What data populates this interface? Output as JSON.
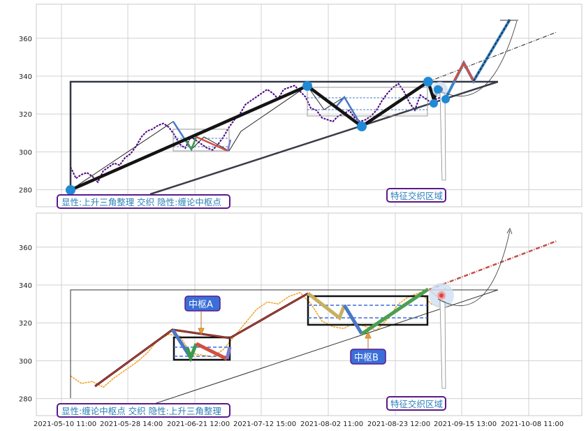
{
  "chart_data": [
    {
      "type": "line",
      "panel": "top",
      "ylim": [
        271,
        378
      ],
      "yticks": [
        "280",
        "300",
        "320",
        "340",
        "360"
      ],
      "grid": true,
      "series": [
        {
          "color": "#4b0082",
          "style": "dotted-price",
          "x": [
            0,
            2,
            4,
            6,
            8,
            10,
            12,
            14,
            16,
            18,
            20,
            22,
            24,
            26,
            28,
            30,
            32,
            34,
            36,
            38,
            40,
            42,
            44,
            46,
            48,
            50,
            52,
            54,
            56,
            58,
            60,
            62,
            64,
            66,
            68,
            70,
            72,
            74,
            76,
            78,
            80,
            82,
            84,
            86,
            88,
            90,
            92,
            94,
            96,
            98,
            100,
            102,
            104,
            106,
            108,
            110,
            112,
            114,
            116,
            118,
            120,
            122,
            124,
            126,
            128,
            130,
            132,
            134,
            136
          ],
          "y": [
            292,
            286,
            288,
            289,
            287,
            284,
            290,
            292,
            294,
            293,
            297,
            299,
            303,
            308,
            311,
            312,
            314,
            315,
            313,
            309,
            304,
            302,
            308,
            306,
            304,
            302,
            301,
            304,
            308,
            313,
            317,
            320,
            325,
            327,
            329,
            331,
            333,
            331,
            328,
            333,
            334,
            335,
            332,
            329,
            323,
            322,
            318,
            317,
            316,
            319,
            320,
            322,
            318,
            316,
            317,
            319,
            322,
            327,
            331,
            334,
            336,
            332,
            326,
            322,
            330,
            328,
            326,
            328,
            329
          ]
        },
        {
          "color": "#111111",
          "name": "",
          "x": [
            5,
            91,
            111,
            128,
            137
          ],
          "y": [
            281,
            335,
            314,
            337,
            326
          ]
        }
      ],
      "annotations": [
        "显性:上升三角整理 交织 隐性:缠论中枢点",
        "特征交织区域"
      ]
    },
    {
      "type": "line",
      "panel": "bottom",
      "ylim": [
        271,
        378
      ],
      "yticks": [
        "280",
        "300",
        "320",
        "340",
        "360"
      ],
      "grid": true,
      "series": [
        {
          "color": "#f0a020",
          "style": "price",
          "x": [
            0,
            4,
            8,
            12,
            16,
            20,
            24,
            28,
            32,
            36,
            40,
            44,
            48,
            52,
            56,
            60,
            64,
            68,
            72,
            76,
            80,
            84,
            88,
            92,
            96,
            100,
            104,
            108,
            112,
            116,
            120,
            124,
            128,
            132,
            136
          ],
          "y": [
            292,
            288,
            289,
            286,
            291,
            295,
            299,
            304,
            311,
            314,
            313,
            304,
            303,
            302,
            306,
            313,
            320,
            327,
            331,
            330,
            334,
            336,
            330,
            321,
            318,
            317,
            320,
            318,
            316,
            322,
            330,
            334,
            336,
            330,
            328
          ]
        }
      ],
      "annotations": [
        "显性:缠论中枢点 交织 隐性:上升三角整理",
        "特征交织区域",
        "中枢A",
        "中枢B"
      ]
    }
  ],
  "xticks": [
    "2021-05-10 11:00",
    "2021-05-28 14:00",
    "2021-06-21 12:00",
    "2021-07-12 15:00",
    "2021-08-02 11:00",
    "2021-08-23 12:00",
    "2021-09-15 13:00",
    "2021-10-08 11:00"
  ],
  "labels": {
    "top_left_box": "显性:上升三角整理 交织 隐性:缠论中枢点",
    "top_right_box": "特征交织区域",
    "bottom_left_box": "显性:缠论中枢点 交织 隐性:上升三角整理",
    "bottom_right_box": "特征交织区域",
    "zhongshu_a": "中枢A",
    "zhongshu_b": "中枢B"
  },
  "colors": {
    "grid": "#d0d0d0",
    "label_border": "#5a1a8a",
    "label_text": "#2a7fb8",
    "node": "#1f8ad6",
    "price_top": "#4b0082",
    "price_bottom": "#f0a020",
    "callout_bg": "#3a6fd8"
  }
}
